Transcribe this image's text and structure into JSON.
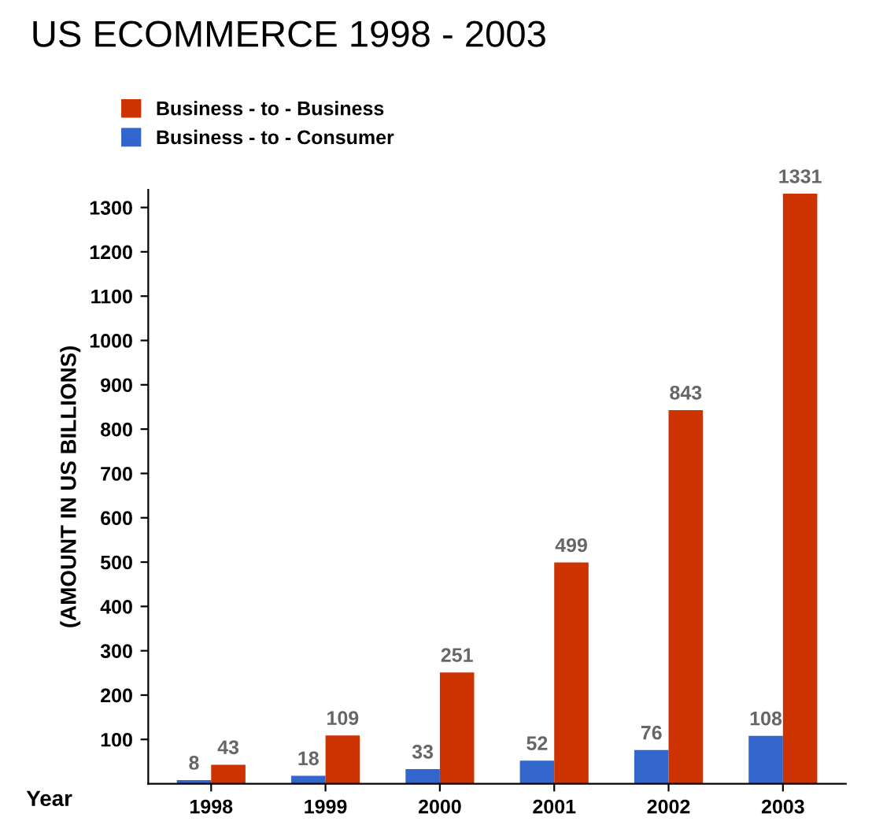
{
  "chart_data": {
    "type": "bar",
    "title": "US ECOMMERCE 1998 - 2003",
    "xlabel": "Year",
    "ylabel": "(AMOUNT IN US BILLIONS)",
    "categories": [
      "1998",
      "1999",
      "2000",
      "2001",
      "2002",
      "2003"
    ],
    "series": [
      {
        "name": "Business - to - Consumer",
        "color": "#3366cc",
        "values": [
          8,
          18,
          33,
          52,
          76,
          108
        ]
      },
      {
        "name": "Business - to - Business",
        "color": "#cc3300",
        "values": [
          43,
          109,
          251,
          499,
          843,
          1331
        ]
      }
    ],
    "ylim": [
      0,
      1340
    ],
    "yticks": [
      100,
      200,
      300,
      400,
      500,
      600,
      700,
      800,
      900,
      1000,
      1100,
      1200,
      1300
    ],
    "data_labels": true,
    "legend": "top left",
    "grid": false
  }
}
